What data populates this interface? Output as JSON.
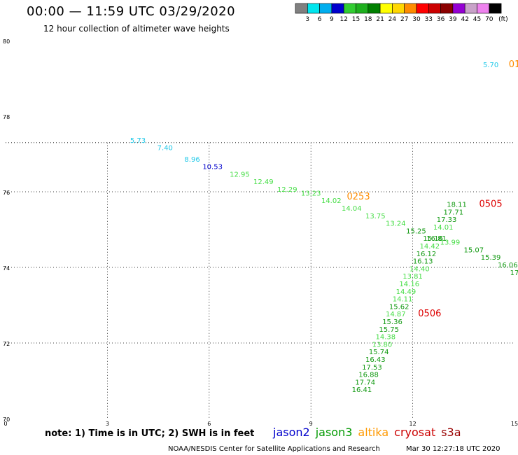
{
  "header": {
    "title": "00:00 — 11:59 UTC 03/29/2020",
    "subtitle": "12 hour collection of altimeter wave heights"
  },
  "colorbar": {
    "unit": "(ft)",
    "labels": [
      "3",
      "6",
      "9",
      "12",
      "15",
      "18",
      "21",
      "24",
      "27",
      "30",
      "33",
      "36",
      "39",
      "42",
      "45",
      "70"
    ],
    "colors": [
      "#808080",
      "#00e5ee",
      "#00aeef",
      "#0000cd",
      "#32cd32",
      "#1eb01e",
      "#008000",
      "#ffff00",
      "#ffd700",
      "#ff8c00",
      "#ff0000",
      "#cc0000",
      "#8b0000",
      "#9400d3",
      "#c8a2c8",
      "#ee82ee",
      "#000000"
    ]
  },
  "chart_data": {
    "type": "scatter",
    "xlim": [
      0,
      15
    ],
    "ylim": [
      70,
      80
    ],
    "x_ticks": [
      "0",
      "3",
      "6",
      "9",
      "12",
      "15"
    ],
    "y_ticks": [
      "70",
      "72",
      "74",
      "76",
      "78",
      "80"
    ],
    "grid": true,
    "points": [
      {
        "x": 14.3,
        "y": 79.3,
        "label": "5.70",
        "color": "#1ec8e8"
      },
      {
        "x": 3.9,
        "y": 77.3,
        "label": "5.73",
        "color": "#1ec8e8"
      },
      {
        "x": 4.7,
        "y": 77.1,
        "label": "7.40",
        "color": "#1ec8e8"
      },
      {
        "x": 5.5,
        "y": 76.8,
        "label": "8.96",
        "color": "#1ec8e8"
      },
      {
        "x": 6.1,
        "y": 76.6,
        "label": "10.53",
        "color": "#0000cd"
      },
      {
        "x": 6.9,
        "y": 76.4,
        "label": "12.95",
        "color": "#44dd44"
      },
      {
        "x": 7.6,
        "y": 76.2,
        "label": "12.49",
        "color": "#44dd44"
      },
      {
        "x": 8.3,
        "y": 76.0,
        "label": "12.29",
        "color": "#44dd44"
      },
      {
        "x": 9.0,
        "y": 75.9,
        "label": "13.23",
        "color": "#44dd44"
      },
      {
        "x": 9.6,
        "y": 75.7,
        "label": "14.02",
        "color": "#44dd44"
      },
      {
        "x": 10.2,
        "y": 75.5,
        "label": "14.04",
        "color": "#44dd44"
      },
      {
        "x": 10.9,
        "y": 75.3,
        "label": "13.75",
        "color": "#44dd44"
      },
      {
        "x": 11.5,
        "y": 75.1,
        "label": "13.24",
        "color": "#44dd44"
      },
      {
        "x": 12.1,
        "y": 74.9,
        "label": "15.25",
        "color": "#119911"
      },
      {
        "x": 12.6,
        "y": 74.7,
        "label": "15.16",
        "color": "#119911"
      },
      {
        "x": 13.1,
        "y": 74.6,
        "label": "13.99",
        "color": "#44dd44"
      },
      {
        "x": 13.8,
        "y": 74.4,
        "label": "15.07",
        "color": "#119911"
      },
      {
        "x": 14.3,
        "y": 74.2,
        "label": "15.39",
        "color": "#119911"
      },
      {
        "x": 14.8,
        "y": 74.0,
        "label": "16.06",
        "color": "#119911"
      },
      {
        "x": 15.0,
        "y": 73.8,
        "label": "17",
        "color": "#119911"
      },
      {
        "x": 13.3,
        "y": 75.6,
        "label": "18.11",
        "color": "#119911"
      },
      {
        "x": 13.2,
        "y": 75.4,
        "label": "17.71",
        "color": "#119911"
      },
      {
        "x": 13.0,
        "y": 75.2,
        "label": "17.33",
        "color": "#119911"
      },
      {
        "x": 12.9,
        "y": 75.0,
        "label": "14.01",
        "color": "#44dd44"
      },
      {
        "x": 12.7,
        "y": 74.7,
        "label": "16.81",
        "color": "#119911"
      },
      {
        "x": 12.5,
        "y": 74.5,
        "label": "14.42",
        "color": "#44dd44"
      },
      {
        "x": 12.4,
        "y": 74.3,
        "label": "16.12",
        "color": "#119911"
      },
      {
        "x": 12.3,
        "y": 74.1,
        "label": "16.13",
        "color": "#119911"
      },
      {
        "x": 12.2,
        "y": 73.9,
        "label": "14.40",
        "color": "#44dd44"
      },
      {
        "x": 12.0,
        "y": 73.7,
        "label": "13.81",
        "color": "#44dd44"
      },
      {
        "x": 11.9,
        "y": 73.5,
        "label": "14.16",
        "color": "#44dd44"
      },
      {
        "x": 11.8,
        "y": 73.3,
        "label": "14.49",
        "color": "#44dd44"
      },
      {
        "x": 11.7,
        "y": 73.1,
        "label": "14.11",
        "color": "#44dd44"
      },
      {
        "x": 11.6,
        "y": 72.9,
        "label": "15.62",
        "color": "#119911"
      },
      {
        "x": 11.5,
        "y": 72.7,
        "label": "14.87",
        "color": "#44dd44"
      },
      {
        "x": 11.4,
        "y": 72.5,
        "label": "15.36",
        "color": "#119911"
      },
      {
        "x": 11.3,
        "y": 72.3,
        "label": "15.75",
        "color": "#119911"
      },
      {
        "x": 11.2,
        "y": 72.1,
        "label": "14.38",
        "color": "#44dd44"
      },
      {
        "x": 11.1,
        "y": 71.9,
        "label": "13.80",
        "color": "#44dd44"
      },
      {
        "x": 11.0,
        "y": 71.7,
        "label": "15.74",
        "color": "#119911"
      },
      {
        "x": 10.9,
        "y": 71.5,
        "label": "16.43",
        "color": "#119911"
      },
      {
        "x": 10.8,
        "y": 71.3,
        "label": "17.53",
        "color": "#119911"
      },
      {
        "x": 10.7,
        "y": 71.1,
        "label": "16.88",
        "color": "#119911"
      },
      {
        "x": 10.6,
        "y": 70.9,
        "label": "17.74",
        "color": "#119911"
      },
      {
        "x": 10.5,
        "y": 70.7,
        "label": "16.41",
        "color": "#119911"
      }
    ],
    "annotations": [
      {
        "x": 15.0,
        "y": 79.3,
        "label": "01",
        "color": "#ff8c00"
      },
      {
        "x": 10.4,
        "y": 75.8,
        "label": "0253",
        "color": "#ff8c00"
      },
      {
        "x": 14.3,
        "y": 75.6,
        "label": "0505",
        "color": "#dd0000"
      },
      {
        "x": 12.5,
        "y": 72.7,
        "label": "0506",
        "color": "#dd0000"
      }
    ]
  },
  "note": "note: 1) Time is in UTC; 2) SWH is in feet",
  "legend": [
    {
      "name": "jason2",
      "color": "#0000cc"
    },
    {
      "name": "jason3",
      "color": "#009900"
    },
    {
      "name": "altika",
      "color": "#ff9900"
    },
    {
      "name": "cryosat",
      "color": "#cc0000"
    },
    {
      "name": "s3a",
      "color": "#990000"
    }
  ],
  "footer": {
    "credit": "NOAA/NESDIS Center for Satellite Applications and Research",
    "timestamp": "Mar 30 12:27:18 UTC 2020"
  }
}
